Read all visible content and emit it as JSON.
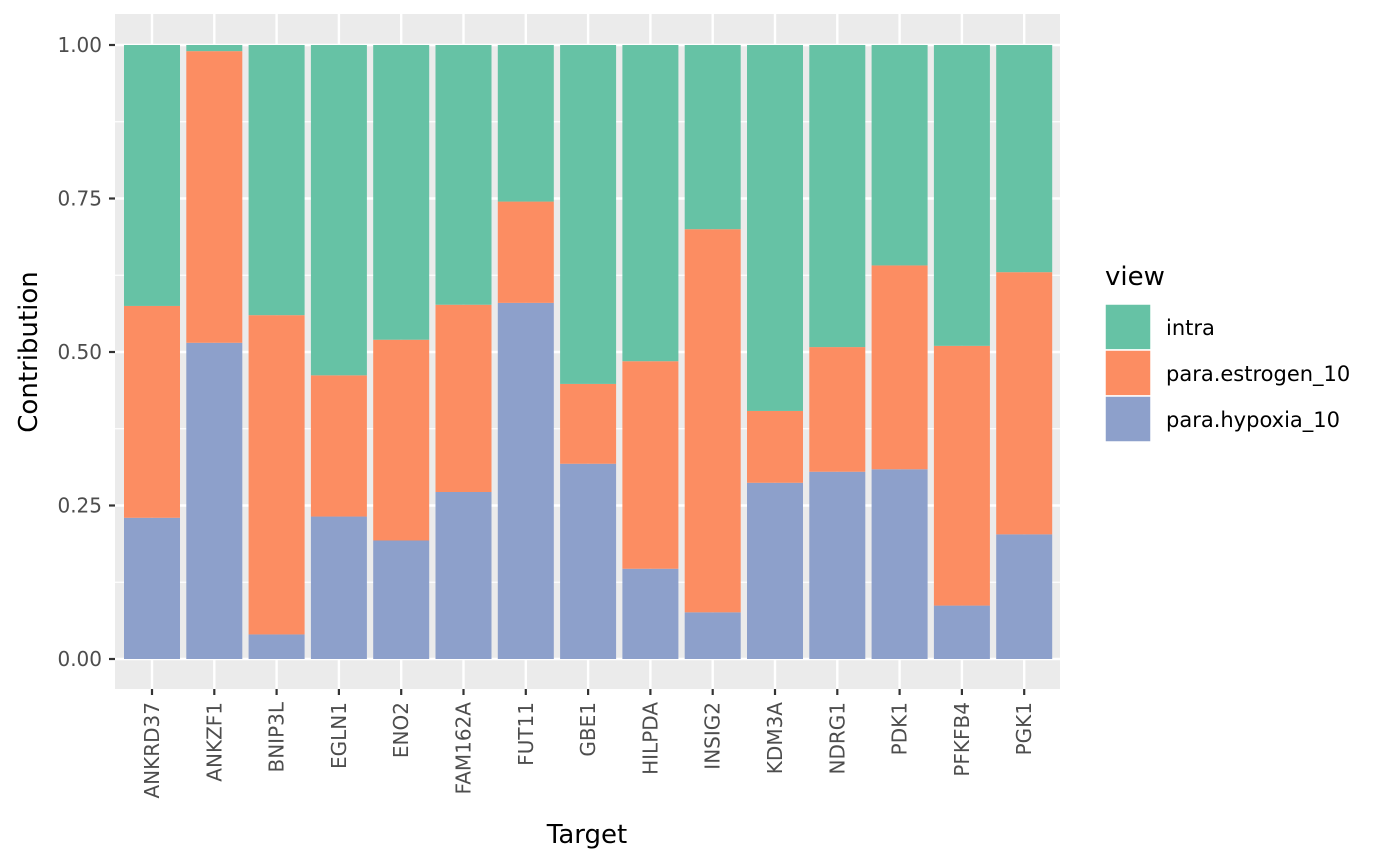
{
  "chart_data": {
    "type": "bar",
    "stacked": true,
    "xlabel": "Target",
    "ylabel": "Contribution",
    "ylim": [
      0,
      1
    ],
    "yticks": [
      "0.00",
      "0.25",
      "0.50",
      "0.75",
      "1.00"
    ],
    "grid": true,
    "legend_position": "right",
    "legend_title": "view",
    "categories": [
      "ANKRD37",
      "ANKZF1",
      "BNIP3L",
      "EGLN1",
      "ENO2",
      "FAM162A",
      "FUT11",
      "GBE1",
      "HILPDA",
      "INSIG2",
      "KDM3A",
      "NDRG1",
      "PDK1",
      "PFKFB4",
      "PGK1"
    ],
    "series": [
      {
        "name": "para.hypoxia_10",
        "color": "#8DA0CB",
        "values": [
          0.23,
          0.515,
          0.04,
          0.232,
          0.193,
          0.272,
          0.58,
          0.318,
          0.147,
          0.076,
          0.287,
          0.305,
          0.309,
          0.087,
          0.203
        ]
      },
      {
        "name": "para.estrogen_10",
        "color": "#FC8D62",
        "values": [
          0.345,
          0.475,
          0.52,
          0.23,
          0.327,
          0.305,
          0.165,
          0.13,
          0.338,
          0.624,
          0.117,
          0.203,
          0.332,
          0.423,
          0.427
        ]
      },
      {
        "name": "intra",
        "color": "#66C2A5",
        "values": [
          0.425,
          0.01,
          0.44,
          0.538,
          0.48,
          0.423,
          0.255,
          0.552,
          0.515,
          0.3,
          0.596,
          0.492,
          0.359,
          0.49,
          0.37
        ]
      }
    ],
    "legend_order": [
      "intra",
      "para.estrogen_10",
      "para.hypoxia_10"
    ],
    "panel_background": "#EBEBEB",
    "grid_color": "#FFFFFF"
  }
}
